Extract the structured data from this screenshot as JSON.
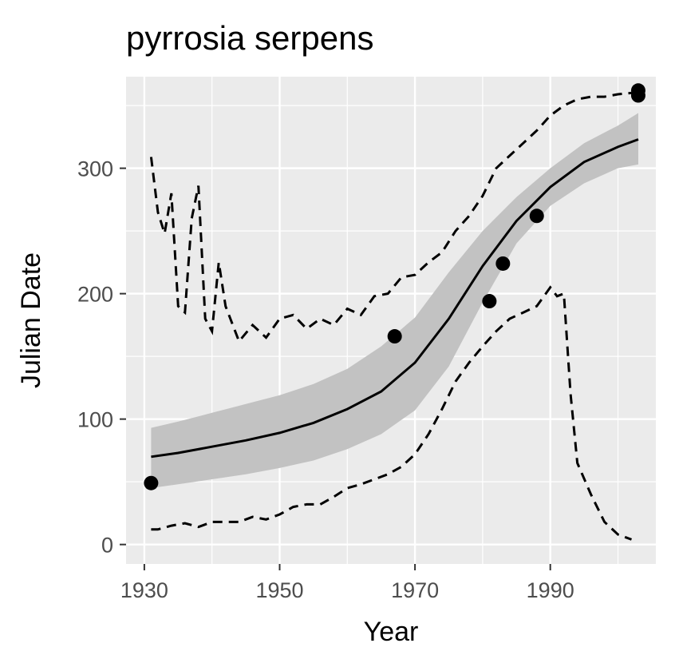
{
  "chart_data": {
    "type": "scatter",
    "title": "pyrrosia serpens",
    "xlabel": "Year",
    "ylabel": "Julian Date",
    "xlim": [
      1927.3,
      2005.6
    ],
    "ylim": [
      -15.5,
      373
    ],
    "x_ticks": [
      1930,
      1950,
      1970,
      1990
    ],
    "x_tick_labels": [
      "1930",
      "1950",
      "1970",
      "1990"
    ],
    "y_ticks": [
      0,
      100,
      200,
      300
    ],
    "y_tick_labels": [
      "0",
      "100",
      "200",
      "300"
    ],
    "grid": true,
    "legend": "none",
    "colors": {
      "panel": "#ebebeb",
      "grid": "#ffffff",
      "points": "#000000",
      "ribbon": "#c2c2c2",
      "tick": "#333333"
    },
    "points": [
      {
        "x": 1931,
        "y": 49
      },
      {
        "x": 1967,
        "y": 166
      },
      {
        "x": 1981,
        "y": 194
      },
      {
        "x": 1983,
        "y": 224
      },
      {
        "x": 1988,
        "y": 262
      },
      {
        "x": 2003,
        "y": 358
      },
      {
        "x": 2003,
        "y": 362
      }
    ],
    "fit": {
      "x": [
        1931,
        1935,
        1940,
        1945,
        1950,
        1955,
        1960,
        1965,
        1970,
        1975,
        1980,
        1985,
        1990,
        1995,
        2000,
        2003
      ],
      "y": [
        70,
        73,
        78,
        83,
        89,
        97,
        108,
        122,
        145,
        180,
        222,
        258,
        285,
        305,
        317,
        323
      ],
      "lower": [
        45,
        48,
        52,
        56,
        61,
        67,
        76,
        88,
        107,
        142,
        193,
        240,
        270,
        288,
        300,
        303
      ],
      "upper": [
        93,
        98,
        105,
        112,
        119,
        128,
        140,
        158,
        181,
        217,
        250,
        277,
        300,
        320,
        334,
        344
      ]
    },
    "upper_bound": {
      "x": [
        1931,
        1932,
        1933,
        1934,
        1935,
        1936,
        1937,
        1938,
        1939,
        1940,
        1941,
        1942,
        1944,
        1946,
        1948,
        1950,
        1952,
        1954,
        1956,
        1958,
        1960,
        1962,
        1964,
        1966,
        1968,
        1970,
        1972,
        1974,
        1976,
        1978,
        1980,
        1982,
        1984,
        1986,
        1988,
        1990,
        1992,
        1994,
        1996,
        1998,
        2000,
        2002
      ],
      "y": [
        309,
        265,
        248,
        280,
        190,
        185,
        260,
        286,
        180,
        170,
        225,
        190,
        162,
        175,
        165,
        180,
        183,
        172,
        180,
        175,
        188,
        183,
        198,
        200,
        213,
        215,
        225,
        233,
        250,
        262,
        278,
        300,
        310,
        320,
        330,
        342,
        350,
        355,
        357,
        357,
        359,
        360
      ]
    },
    "lower_bound": {
      "x": [
        1931,
        1932,
        1934,
        1936,
        1938,
        1940,
        1942,
        1944,
        1946,
        1948,
        1950,
        1952,
        1954,
        1956,
        1958,
        1960,
        1962,
        1964,
        1966,
        1968,
        1970,
        1972,
        1974,
        1976,
        1978,
        1980,
        1982,
        1984,
        1986,
        1988,
        1990,
        1991,
        1992,
        1993,
        1994,
        1996,
        1998,
        2000,
        2002
      ],
      "y": [
        12,
        12,
        15,
        17,
        14,
        18,
        18,
        18,
        22,
        20,
        24,
        30,
        32,
        32,
        38,
        45,
        48,
        52,
        56,
        62,
        72,
        88,
        108,
        130,
        145,
        158,
        170,
        180,
        185,
        190,
        205,
        198,
        200,
        120,
        65,
        40,
        18,
        8,
        4
      ]
    }
  }
}
